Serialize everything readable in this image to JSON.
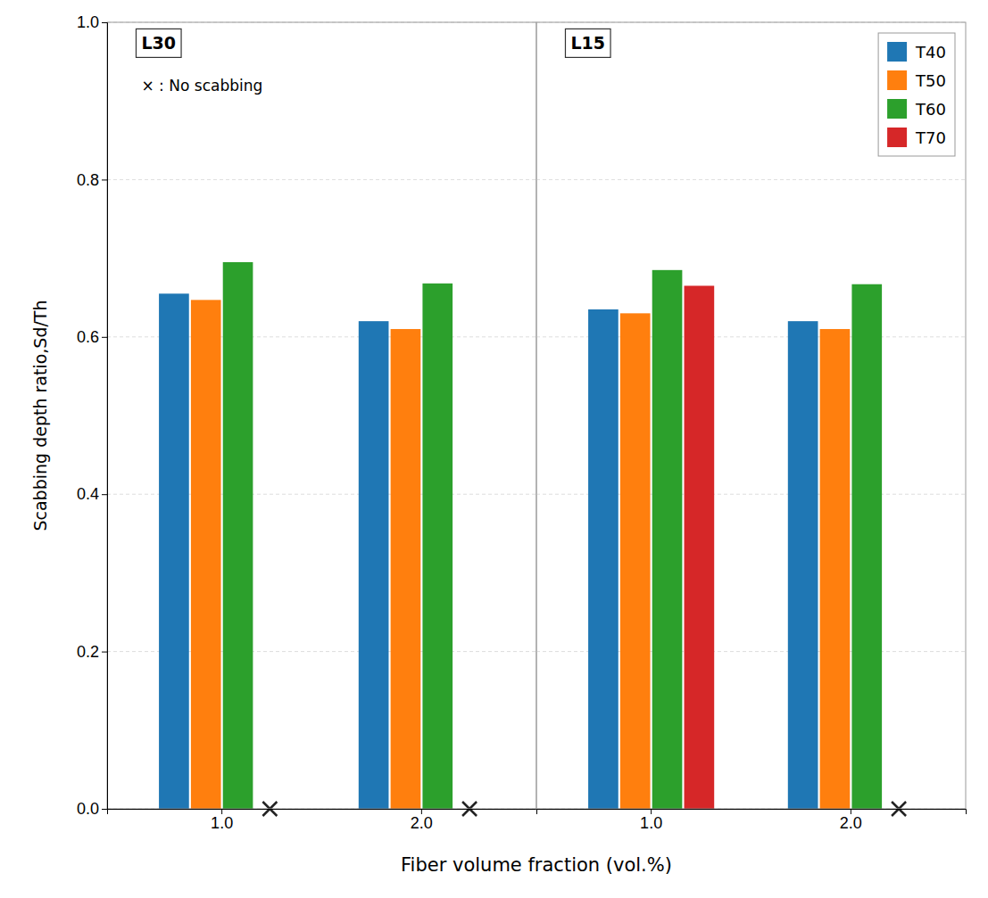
{
  "chart_data": [
    {
      "type": "bar",
      "title": "L30",
      "categories": [
        "1.0",
        "2.0"
      ],
      "series": [
        {
          "name": "T40",
          "values": [
            0.655,
            0.62
          ],
          "no_scabbing": [
            false,
            false
          ]
        },
        {
          "name": "T50",
          "values": [
            0.647,
            0.61
          ],
          "no_scabbing": [
            false,
            false
          ]
        },
        {
          "name": "T60",
          "values": [
            0.695,
            0.668
          ],
          "no_scabbing": [
            false,
            false
          ]
        },
        {
          "name": "T70",
          "values": [
            null,
            null
          ],
          "no_scabbing": [
            true,
            true
          ]
        }
      ],
      "ylabel": "Scabbing depth ratio,Sd/Th",
      "xlabel": "Fiber volume fraction (vol.%)",
      "annotations": [
        "× : No scabbing"
      ],
      "ylim": [
        0.0,
        1.0
      ],
      "yticks": [
        {
          "value": 0.0,
          "label": "0.0"
        },
        0.2,
        0.4,
        0.6,
        0.8,
        {
          "value": 1.0,
          "label": "1.0"
        }
      ],
      "grid": true
    },
    {
      "type": "bar",
      "title": "L15",
      "categories": [
        "1.0",
        "2.0"
      ],
      "series": [
        {
          "name": "T40",
          "values": [
            0.635,
            0.62
          ],
          "no_scabbing": [
            false,
            false
          ]
        },
        {
          "name": "T50",
          "values": [
            0.63,
            0.61
          ],
          "no_scabbing": [
            false,
            false
          ]
        },
        {
          "name": "T60",
          "values": [
            0.685,
            0.667
          ],
          "no_scabbing": [
            false,
            false
          ]
        },
        {
          "name": "T70",
          "values": [
            0.665,
            null
          ],
          "no_scabbing": [
            false,
            true
          ]
        }
      ],
      "ylim": [
        0.0,
        1.0
      ],
      "yticks": [
        0.0,
        0.2,
        0.4,
        0.6,
        0.8,
        1.0
      ],
      "grid": true,
      "tick_labels": "x",
      "legend": "upper right"
    }
  ]
}
